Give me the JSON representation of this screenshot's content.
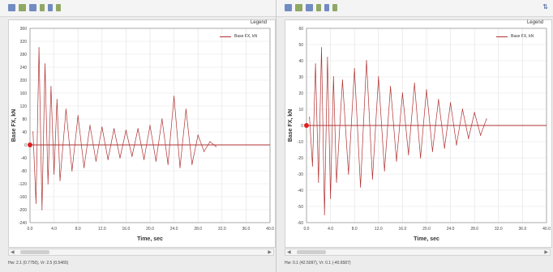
{
  "panels": [
    {
      "id": "left",
      "status_text": "Hw: 2.1 (0.7750), Vr: 2.5 (0.5465)",
      "legend_title": "Legend",
      "legend_series": "Base FX, kN",
      "y_label": "Base FX, kN",
      "x_label": "Time, sec"
    },
    {
      "id": "right",
      "status_text": "Hw: 0.1 (42.5097), Vr: 0.1 (-40.6587)",
      "legend_title": "Legend",
      "legend_series": "Base FX, kN",
      "y_label": "Base FX, kN",
      "x_label": "Time, sec"
    }
  ],
  "colors": {
    "series": "#b03030",
    "marker": "#e02020",
    "grid": "#e2e2e2"
  },
  "chart_data": [
    {
      "type": "line",
      "title": "",
      "xlabel": "Time, sec",
      "ylabel": "Base FX, kN",
      "xlim": [
        0,
        40
      ],
      "ylim": [
        -240,
        360
      ],
      "x_ticks": [
        "0.0",
        "4.0",
        "8.0",
        "12.0",
        "16.0",
        "20.0",
        "24.0",
        "28.0",
        "32.0",
        "36.0",
        "40.0"
      ],
      "y_ticks": [
        "360",
        "320",
        "280",
        "240",
        "200",
        "160",
        "120",
        "80",
        "40",
        "0",
        "-40",
        "-80",
        "-120",
        "-160",
        "-200",
        "-240"
      ],
      "legend": "top-right",
      "grid": true,
      "series": [
        {
          "name": "Base FX, kN",
          "x": [
            0.5,
            1.0,
            1.5,
            2.0,
            2.5,
            3.0,
            3.5,
            4.0,
            4.5,
            5.0,
            6.0,
            7.0,
            8.0,
            9.0,
            10.0,
            11.0,
            12.0,
            13.0,
            14.0,
            15.0,
            16.0,
            17.0,
            18.0,
            19.0,
            20.0,
            21.0,
            22.0,
            23.0,
            24.0,
            25.0,
            26.0,
            27.0,
            28.0,
            29.0,
            30.0,
            31.0
          ],
          "values": [
            40,
            -180,
            300,
            -200,
            250,
            -120,
            180,
            -90,
            140,
            -110,
            110,
            -80,
            90,
            -70,
            60,
            -50,
            55,
            -45,
            50,
            -40,
            45,
            -35,
            50,
            -45,
            60,
            -50,
            80,
            -60,
            150,
            -70,
            110,
            -60,
            30,
            -20,
            10,
            -5
          ]
        }
      ]
    },
    {
      "type": "line",
      "title": "",
      "xlabel": "Time, sec",
      "ylabel": "Base FX, kN",
      "xlim": [
        0,
        40
      ],
      "ylim": [
        -60,
        60
      ],
      "x_ticks": [
        "0.0",
        "4.0",
        "8.0",
        "12.0",
        "16.0",
        "20.0",
        "24.0",
        "28.0",
        "32.0",
        "36.0",
        "40.0"
      ],
      "y_ticks": [
        "60",
        "50",
        "40",
        "30",
        "20",
        "10",
        "0",
        "-10",
        "-20",
        "-30",
        "-40",
        "-50",
        "-60"
      ],
      "legend": "top-right",
      "grid": true,
      "series": [
        {
          "name": "Base FX, kN",
          "x": [
            0.5,
            1.0,
            1.5,
            2.0,
            2.5,
            3.0,
            3.5,
            4.0,
            4.5,
            5.0,
            6.0,
            7.0,
            8.0,
            9.0,
            10.0,
            11.0,
            12.0,
            13.0,
            14.0,
            15.0,
            16.0,
            17.0,
            18.0,
            19.0,
            20.0,
            21.0,
            22.0,
            23.0,
            24.0,
            25.0,
            26.0,
            27.0,
            28.0,
            29.0,
            30.0
          ],
          "values": [
            5,
            -25,
            38,
            -35,
            48,
            -55,
            42,
            -45,
            30,
            -35,
            28,
            -30,
            35,
            -38,
            40,
            -33,
            30,
            -28,
            24,
            -22,
            20,
            -18,
            26,
            -20,
            22,
            -16,
            16,
            -14,
            14,
            -12,
            10,
            -8,
            8,
            -6,
            4
          ]
        }
      ]
    }
  ]
}
